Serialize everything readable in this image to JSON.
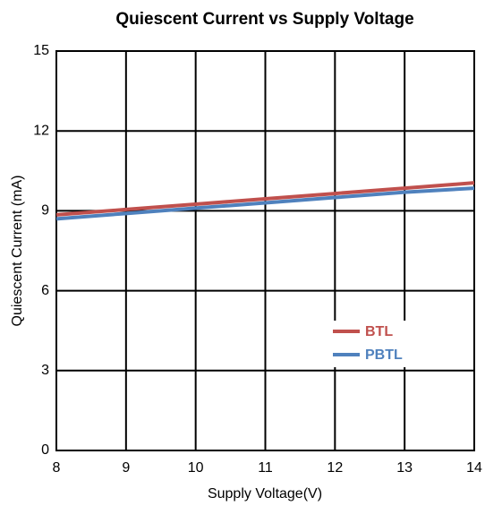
{
  "chart_data": {
    "type": "line",
    "title": "Quiescent Current vs Supply Voltage",
    "x_label": "Supply Voltage(V)",
    "y_label": "Quiescent Current (mA)",
    "x": [
      8,
      9,
      10,
      11,
      12,
      13,
      14
    ],
    "series": [
      {
        "name": "BTL",
        "color": "#c0504d",
        "values": [
          8.85,
          9.05,
          9.25,
          9.45,
          9.65,
          9.85,
          10.05
        ]
      },
      {
        "name": "PBTL",
        "color": "#4f81bd",
        "values": [
          8.7,
          8.9,
          9.1,
          9.3,
          9.5,
          9.7,
          9.85
        ]
      }
    ],
    "xlim": [
      8,
      14
    ],
    "xticks": [
      8,
      9,
      10,
      11,
      12,
      13,
      14
    ],
    "ylim": [
      0,
      15
    ],
    "yticks": [
      0,
      3,
      6,
      9,
      12,
      15
    ],
    "grid": true,
    "legend": "lower right"
  }
}
